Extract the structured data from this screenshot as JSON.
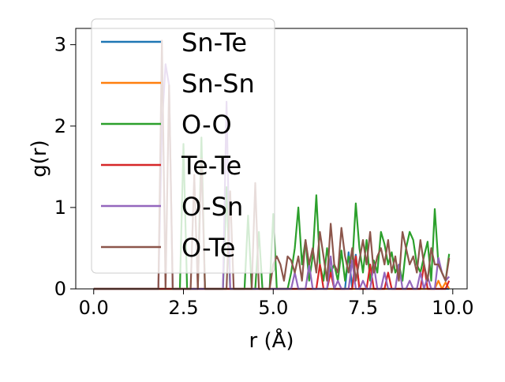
{
  "chart_data": {
    "type": "line",
    "title": "",
    "xlabel": "r (Å)",
    "ylabel": "g(r)",
    "xlim": [
      -0.5,
      10.4
    ],
    "ylim": [
      0,
      3.2
    ],
    "xticks": [
      0.0,
      2.5,
      5.0,
      7.5,
      10.0
    ],
    "xtick_labels": [
      "0.0",
      "2.5",
      "5.0",
      "7.5",
      "10.0"
    ],
    "yticks": [
      0,
      1,
      2,
      3
    ],
    "ytick_labels": [
      "0",
      "1",
      "2",
      "3"
    ],
    "legend_position": "top-left",
    "x": [
      0.0,
      0.1,
      0.2,
      0.3,
      0.4,
      0.5,
      0.6,
      0.7,
      0.8,
      0.9,
      1.0,
      1.1,
      1.2,
      1.3,
      1.4,
      1.5,
      1.6,
      1.7,
      1.8,
      1.9,
      2.0,
      2.1,
      2.2,
      2.3,
      2.4,
      2.5,
      2.6,
      2.7,
      2.8,
      2.9,
      3.0,
      3.1,
      3.2,
      3.3,
      3.4,
      3.5,
      3.6,
      3.7,
      3.8,
      3.9,
      4.0,
      4.1,
      4.2,
      4.3,
      4.4,
      4.5,
      4.6,
      4.7,
      4.8,
      4.9,
      5.0,
      5.1,
      5.2,
      5.3,
      5.4,
      5.5,
      5.6,
      5.7,
      5.8,
      5.9,
      6.0,
      6.1,
      6.2,
      6.3,
      6.4,
      6.5,
      6.6,
      6.7,
      6.8,
      6.9,
      7.0,
      7.1,
      7.2,
      7.3,
      7.4,
      7.5,
      7.6,
      7.7,
      7.8,
      7.9,
      8.0,
      8.1,
      8.2,
      8.3,
      8.4,
      8.5,
      8.6,
      8.7,
      8.8,
      8.9,
      9.0,
      9.1,
      9.2,
      9.3,
      9.4,
      9.5,
      9.6,
      9.7,
      9.8,
      9.9
    ],
    "series": [
      {
        "name": "Sn-Te",
        "color": "#1f77b4",
        "values": [
          0,
          0,
          0,
          0,
          0,
          0,
          0,
          0,
          0,
          0,
          0,
          0,
          0,
          0,
          0,
          0,
          0,
          0,
          0,
          0,
          0,
          0,
          0,
          0,
          0,
          0,
          0,
          0,
          0,
          0,
          0,
          0,
          0,
          0,
          0,
          0,
          0,
          0,
          0,
          0,
          0,
          0,
          0,
          0,
          0,
          0,
          0,
          0,
          0,
          0,
          0,
          0,
          0,
          0,
          0,
          0,
          0,
          0,
          0,
          0,
          0,
          0,
          0,
          0,
          0,
          0,
          0,
          0,
          0,
          0,
          0,
          0.45,
          0,
          0.42,
          0,
          0,
          0,
          0,
          0,
          0,
          0,
          0,
          0,
          0,
          0,
          0,
          0,
          0,
          0,
          0,
          0,
          0,
          0,
          0,
          0,
          0,
          0,
          0,
          0,
          0
        ]
      },
      {
        "name": "Sn-Sn",
        "color": "#ff7f0e",
        "values": [
          0,
          0,
          0,
          0,
          0,
          0,
          0,
          0,
          0,
          0,
          0,
          0,
          0,
          0,
          0,
          0,
          0,
          0,
          0,
          0,
          0,
          0,
          0,
          0,
          0,
          0,
          0,
          0,
          0,
          0,
          0,
          0,
          0,
          0,
          0,
          0,
          0,
          0,
          0,
          0,
          0,
          0,
          0,
          0,
          0,
          0,
          0,
          0,
          0,
          0,
          0,
          0,
          0,
          0,
          0,
          0,
          0,
          0,
          0,
          0,
          0,
          0,
          0,
          0,
          0,
          0,
          0,
          0,
          0,
          0,
          0,
          0,
          0,
          0,
          0,
          0,
          0,
          0,
          0,
          0,
          0,
          0,
          0,
          0,
          0,
          0,
          0,
          0,
          0,
          0,
          0,
          0,
          0,
          0,
          0,
          0,
          0.1,
          0,
          0.08,
          0
        ]
      },
      {
        "name": "O-O",
        "color": "#2ca02c",
        "values": [
          0,
          0,
          0,
          0,
          0,
          0,
          0,
          0,
          0,
          0,
          0,
          0,
          0,
          0,
          0,
          0,
          0,
          0,
          0,
          0,
          0,
          0,
          0,
          0,
          0,
          1.78,
          0,
          0,
          0,
          0,
          1.86,
          0,
          0,
          0,
          0,
          0,
          0,
          1.25,
          0,
          0,
          0,
          0,
          0,
          0.9,
          0,
          0,
          0.7,
          0,
          0,
          0,
          0.92,
          0,
          0,
          0,
          0,
          0.2,
          0.5,
          1.0,
          0.3,
          0.6,
          0.1,
          0.4,
          1.15,
          0.3,
          0.1,
          0.5,
          0.2,
          0.3,
          0.1,
          0.47,
          0.1,
          0.4,
          0.3,
          1.05,
          0.5,
          0.2,
          0.6,
          0.1,
          0.35,
          0.2,
          0.7,
          0.55,
          0.3,
          0.45,
          0.2,
          0.3,
          0.1,
          0.5,
          0.7,
          0.6,
          0.3,
          0.2,
          0.4,
          0.58,
          0.1,
          0.98,
          0.3,
          0.2,
          0.1,
          0.43
        ]
      },
      {
        "name": "Te-Te",
        "color": "#d62728",
        "values": [
          0,
          0,
          0,
          0,
          0,
          0,
          0,
          0,
          0,
          0,
          0,
          0,
          0,
          0,
          0,
          0,
          0,
          0,
          0,
          0,
          0,
          0,
          0,
          0,
          0,
          0,
          0,
          0,
          0,
          0,
          0,
          0,
          0,
          0,
          0,
          0,
          0,
          0,
          0,
          0,
          0,
          0,
          0,
          0,
          0,
          0,
          0,
          0,
          0,
          0,
          0,
          0,
          0,
          0,
          0,
          0,
          0,
          0,
          0,
          0,
          0,
          0,
          0,
          0.3,
          0,
          0,
          0.2,
          0,
          0,
          0,
          0,
          0,
          0,
          0.4,
          0,
          0,
          0,
          0.3,
          0,
          0,
          0,
          0,
          0.2,
          0,
          0,
          0,
          0,
          0,
          0,
          0,
          0,
          0,
          0.3,
          0,
          0,
          0,
          0,
          0,
          0,
          0.1
        ]
      },
      {
        "name": "O-Sn",
        "color": "#9467bd",
        "values": [
          0,
          0,
          0,
          0,
          0,
          0,
          0,
          0,
          0,
          0,
          0,
          0,
          0,
          0,
          0,
          0,
          0,
          0,
          0,
          2.0,
          2.76,
          2.5,
          0,
          0,
          0,
          0,
          0,
          0,
          0,
          0,
          0,
          0,
          0,
          0,
          0,
          0,
          0,
          2.3,
          0,
          0,
          0,
          0,
          0,
          0,
          0,
          0,
          0,
          0,
          0,
          0,
          0,
          0,
          0,
          0,
          0,
          0,
          0.2,
          0,
          0,
          0,
          0.3,
          0,
          0,
          0,
          0,
          0,
          0.4,
          0,
          0.1,
          0,
          0,
          0,
          0.35,
          0,
          0,
          0.1,
          0,
          0,
          0.3,
          0,
          0,
          0.2,
          0,
          0,
          0,
          0.3,
          0,
          0,
          0.1,
          0,
          0,
          0.2,
          0,
          0.15,
          0,
          0,
          0.38,
          0.2,
          0.1,
          0.15
        ]
      },
      {
        "name": "O-Te",
        "color": "#8c564b",
        "values": [
          0,
          0,
          0,
          0,
          0,
          0,
          0,
          0,
          0,
          0,
          0,
          0,
          0,
          0,
          0,
          0,
          0,
          0,
          0,
          3.05,
          0,
          2.5,
          0,
          0,
          0,
          0,
          0,
          0,
          1.4,
          0,
          1.6,
          0,
          0,
          0,
          0,
          0,
          0,
          0,
          1.2,
          0,
          0,
          0,
          0,
          0,
          0,
          1.3,
          0,
          0,
          0,
          0,
          0.3,
          0.4,
          0.3,
          0.1,
          0.4,
          0.35,
          0.2,
          0.4,
          0.1,
          0.6,
          0.3,
          0.5,
          0.2,
          0.7,
          0.4,
          0.1,
          0.8,
          0.3,
          0.2,
          0.75,
          0.4,
          0.2,
          0.5,
          0.1,
          0.35,
          0.6,
          0.3,
          0.7,
          0.2,
          0.4,
          0.5,
          0.3,
          0.6,
          0.2,
          0.4,
          0.1,
          0.7,
          0.5,
          0.3,
          0.4,
          0.2,
          0.6,
          0.3,
          0.1,
          0.5,
          0.3,
          0.3,
          0.2,
          0.1,
          0.38
        ]
      }
    ]
  }
}
